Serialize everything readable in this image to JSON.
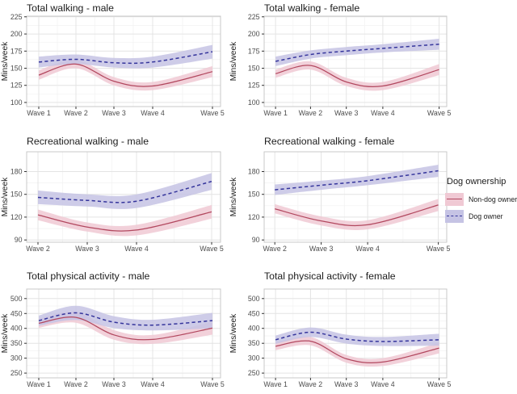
{
  "legend": {
    "title": "Dog ownership",
    "items": [
      {
        "label": "Non-dog owner",
        "style": "solid",
        "color_key": "non_dog"
      },
      {
        "label": "Dog owner",
        "style": "dashed",
        "color_key": "dog"
      }
    ]
  },
  "colors": {
    "non_dog_line": "#b2485f",
    "non_dog_band": "#f0c9d4",
    "dog_line": "#35359c",
    "dog_band": "#c5c3e4",
    "grid_major": "#e4e4e4",
    "grid_minor": "#f2f2f2",
    "panel_border": "#c8c8c8",
    "tick_text": "#4d4d4d",
    "title_text": "#1c1c1c"
  },
  "chart_data": [
    {
      "type": "line",
      "title": "Total walking - male",
      "ylabel": "Mins/week",
      "categories": [
        "Wave 1",
        "Wave 2",
        "Wave 3",
        "Wave 4",
        "Wave 5"
      ],
      "yticks": [
        100,
        125,
        150,
        175,
        200,
        225
      ],
      "ylim": [
        94,
        226
      ],
      "grid": true,
      "series": [
        {
          "name": "Non-dog owner",
          "style": "solid",
          "color_key": "non_dog",
          "values": [
            140,
            156,
            131,
            124,
            145
          ],
          "ci_halfwidth": [
            7,
            6,
            6,
            6,
            8
          ]
        },
        {
          "name": "Dog owner",
          "style": "dashed",
          "color_key": "dog",
          "values": [
            159,
            163,
            158,
            159,
            174
          ],
          "ci_halfwidth": [
            8,
            7,
            7,
            8,
            10
          ]
        }
      ]
    },
    {
      "type": "line",
      "title": "Total walking - female",
      "ylabel": "Mins/week",
      "categories": [
        "Wave 1",
        "Wave 2",
        "Wave 3",
        "Wave 4",
        "Wave 5"
      ],
      "yticks": [
        100,
        125,
        150,
        175,
        200,
        225
      ],
      "ylim": [
        94,
        226
      ],
      "grid": true,
      "series": [
        {
          "name": "Non-dog owner",
          "style": "solid",
          "color_key": "non_dog",
          "values": [
            142,
            154,
            130,
            124,
            148
          ],
          "ci_halfwidth": [
            6,
            6,
            6,
            6,
            8
          ]
        },
        {
          "name": "Dog owner",
          "style": "dashed",
          "color_key": "dog",
          "values": [
            160,
            170,
            175,
            179,
            185
          ],
          "ci_halfwidth": [
            7,
            6,
            6,
            6,
            8
          ]
        }
      ]
    },
    {
      "type": "line",
      "title": "Recreational walking - male",
      "ylabel": "Mins/week",
      "categories": [
        "Wave 2",
        "Wave 3",
        "Wave 4",
        "Wave 5"
      ],
      "yticks": [
        90,
        120,
        150,
        180
      ],
      "ylim": [
        87,
        206
      ],
      "grid": true,
      "series": [
        {
          "name": "Non-dog owner",
          "style": "solid",
          "color_key": "non_dog",
          "values": [
            123,
            107,
            103,
            127
          ],
          "ci_halfwidth": [
            7,
            6,
            7,
            9
          ]
        },
        {
          "name": "Dog owner",
          "style": "dashed",
          "color_key": "dog",
          "values": [
            146,
            142,
            141,
            167
          ],
          "ci_halfwidth": [
            9,
            8,
            9,
            11
          ]
        }
      ]
    },
    {
      "type": "line",
      "title": "Recreational walking - female",
      "ylabel": "Mins/week",
      "categories": [
        "Wave 2",
        "Wave 3",
        "Wave 4",
        "Wave 5"
      ],
      "yticks": [
        90,
        120,
        150,
        180
      ],
      "ylim": [
        87,
        206
      ],
      "grid": true,
      "series": [
        {
          "name": "Non-dog owner",
          "style": "solid",
          "color_key": "non_dog",
          "values": [
            131,
            115,
            110,
            136
          ],
          "ci_halfwidth": [
            6,
            6,
            6,
            8
          ]
        },
        {
          "name": "Dog owner",
          "style": "dashed",
          "color_key": "dog",
          "values": [
            156,
            162,
            168,
            181
          ],
          "ci_halfwidth": [
            7,
            6,
            6,
            8
          ]
        }
      ]
    },
    {
      "type": "line",
      "title": "Total physical activity - male",
      "ylabel": "Mins/week",
      "categories": [
        "Wave 1",
        "Wave 2",
        "Wave 3",
        "Wave 4",
        "Wave 5"
      ],
      "yticks": [
        250,
        300,
        350,
        400,
        450,
        500
      ],
      "ylim": [
        234,
        532
      ],
      "grid": true,
      "series": [
        {
          "name": "Non-dog owner",
          "style": "solid",
          "color_key": "non_dog",
          "values": [
            417,
            437,
            378,
            363,
            401
          ],
          "ci_halfwidth": [
            15,
            18,
            16,
            15,
            22
          ]
        },
        {
          "name": "Dog owner",
          "style": "dashed",
          "color_key": "dog",
          "values": [
            426,
            452,
            421,
            411,
            426
          ],
          "ci_halfwidth": [
            17,
            24,
            20,
            18,
            26
          ]
        }
      ]
    },
    {
      "type": "line",
      "title": "Total physical activity - female",
      "ylabel": "Mins/week",
      "categories": [
        "Wave 1",
        "Wave 2",
        "Wave 3",
        "Wave 4",
        "Wave 5"
      ],
      "yticks": [
        250,
        300,
        350,
        400,
        450,
        500
      ],
      "ylim": [
        234,
        532
      ],
      "grid": true,
      "series": [
        {
          "name": "Non-dog owner",
          "style": "solid",
          "color_key": "non_dog",
          "values": [
            340,
            357,
            298,
            287,
            334
          ],
          "ci_halfwidth": [
            13,
            14,
            13,
            13,
            18
          ]
        },
        {
          "name": "Dog owner",
          "style": "dashed",
          "color_key": "dog",
          "values": [
            362,
            387,
            364,
            356,
            362
          ],
          "ci_halfwidth": [
            14,
            16,
            15,
            15,
            20
          ]
        }
      ]
    }
  ]
}
